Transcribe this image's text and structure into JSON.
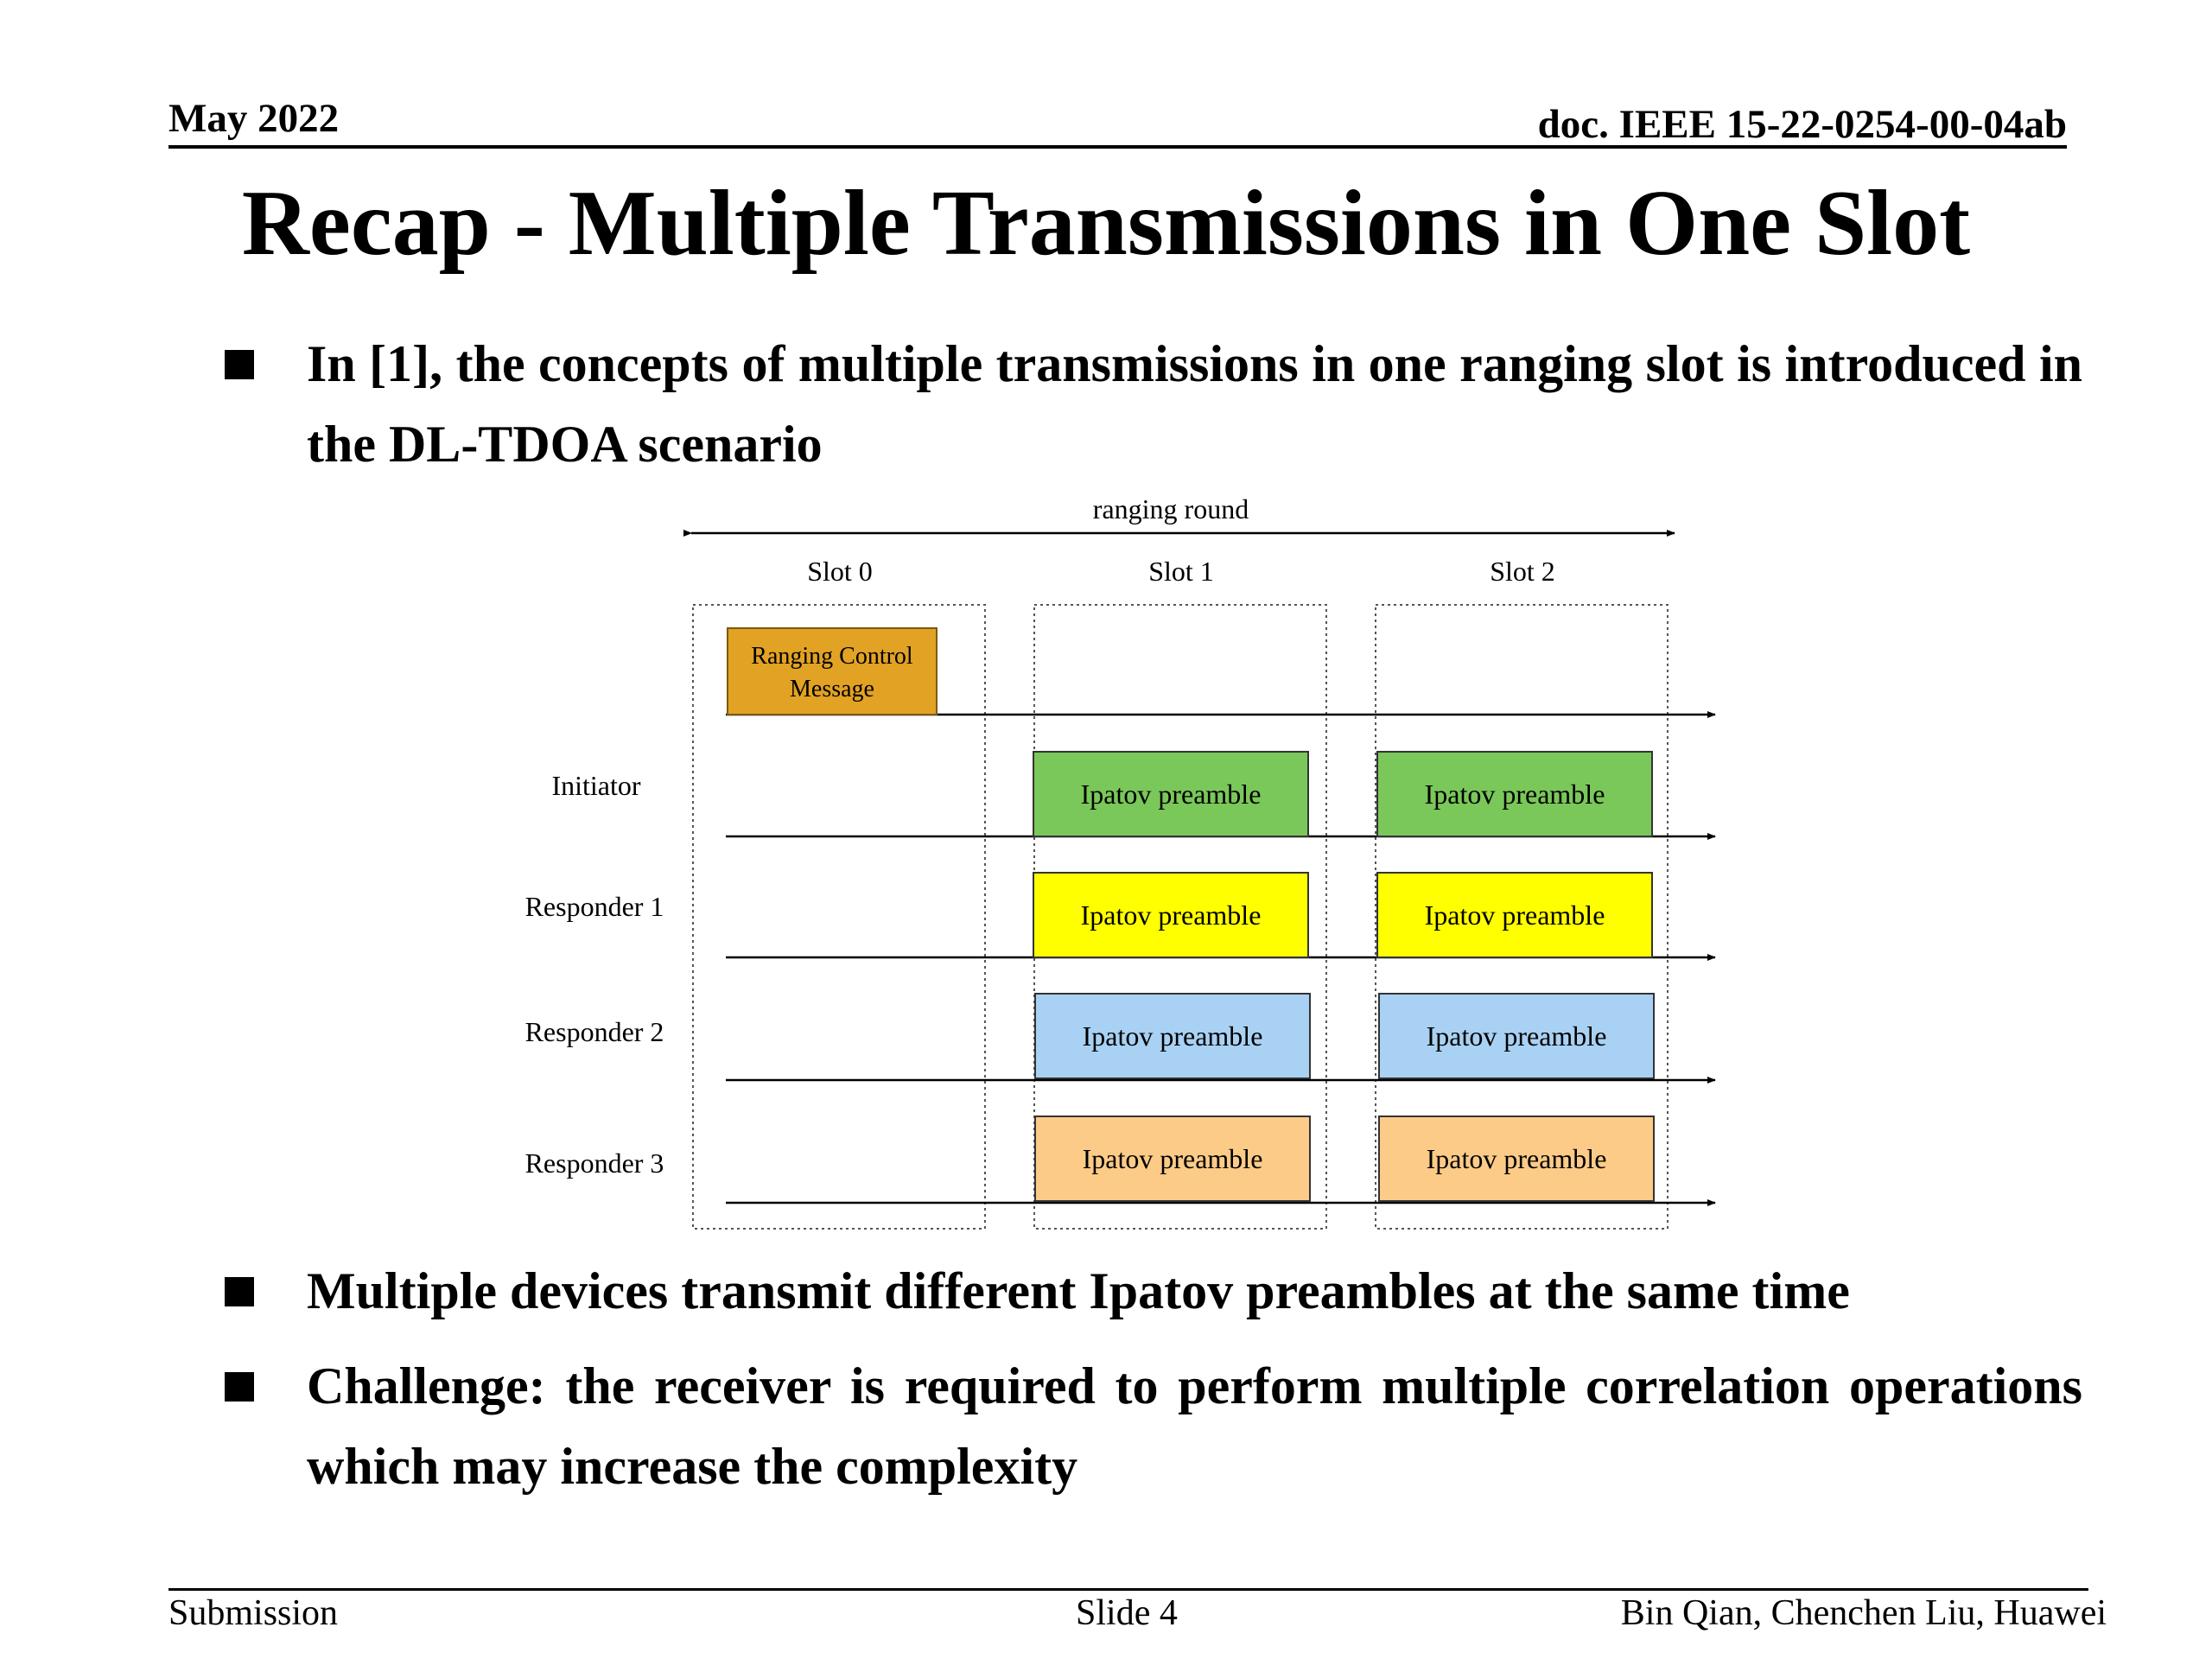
{
  "header": {
    "date": "May 2022",
    "doc_id": "doc. IEEE 15-22-0254-00-04ab"
  },
  "title": "Recap - Multiple Transmissions in One Slot",
  "bullets": [
    "In [1], the concepts of multiple transmissions in one ranging slot is introduced in the DL-TDOA scenario",
    "Multiple devices transmit different Ipatov preambles at the same time",
    "Challenge: the receiver is required to perform multiple correlation operations which may increase the complexity"
  ],
  "diagram": {
    "ranging_round_label": "ranging round",
    "slots": [
      "Slot 0",
      "Slot 1",
      "Slot 2"
    ],
    "control_message": "Ranging Control Message",
    "control_message_lines": [
      "Ranging Control",
      "Message"
    ],
    "rows": [
      {
        "label": "Initiator",
        "block_label": "Ipatov preamble",
        "color": "#7ac75a"
      },
      {
        "label": "Responder 1",
        "block_label": "Ipatov preamble",
        "color": "#ffff00"
      },
      {
        "label": "Responder 2",
        "block_label": "Ipatov preamble",
        "color": "#a9d1f3"
      },
      {
        "label": "Responder 3",
        "block_label": "Ipatov preamble",
        "color": "#fdcb88"
      }
    ],
    "control_color": "#e2a224"
  },
  "footer": {
    "left": "Submission",
    "center": "Slide 4",
    "right": "Bin Qian, Chenchen Liu, Huawei"
  }
}
